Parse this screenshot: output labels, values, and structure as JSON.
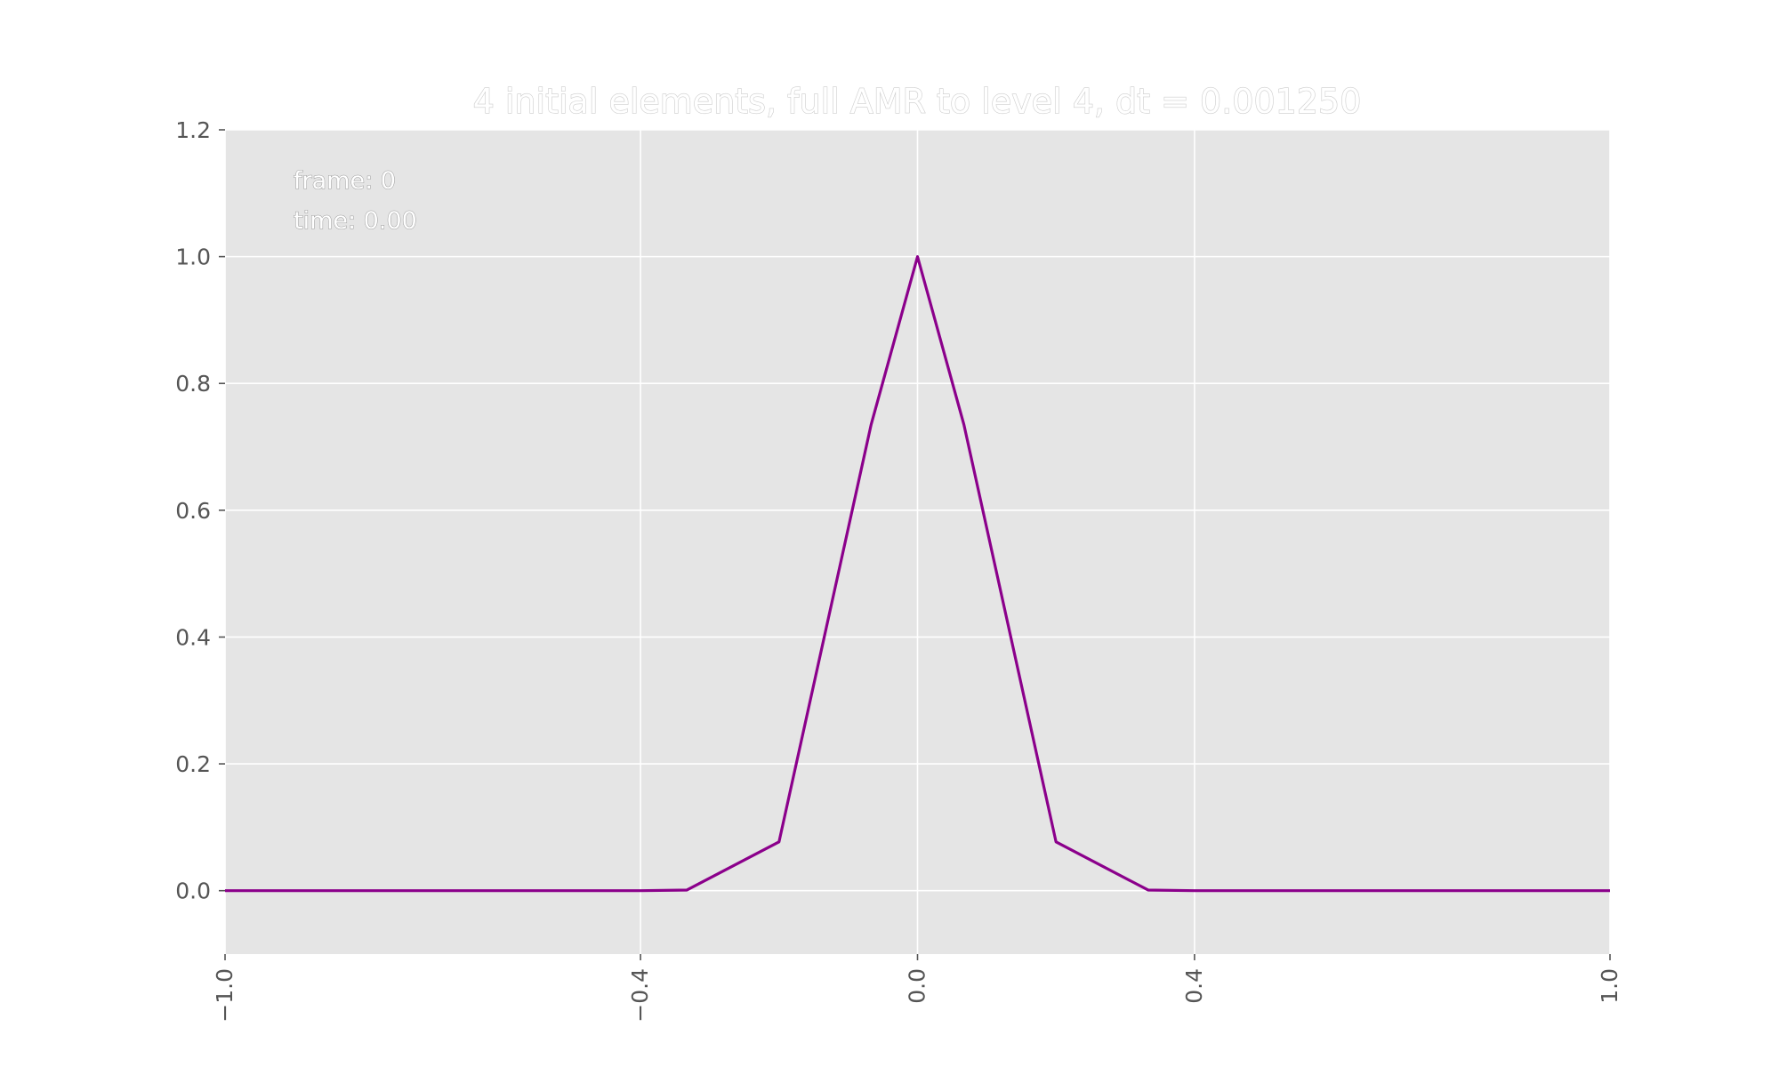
{
  "chart_data": {
    "type": "line",
    "title": "4 initial elements, full AMR to level 4, dt = 0.001250",
    "xlabel": "",
    "ylabel": "",
    "xlim": [
      -1.0,
      1.0
    ],
    "ylim": [
      -0.1,
      1.2
    ],
    "xticks": [
      -1.0,
      -0.4,
      0.0,
      0.4,
      1.0
    ],
    "xtick_labels": [
      "−1.0",
      "−0.4",
      "0.0",
      "0.4",
      "1.0"
    ],
    "yticks": [
      0.0,
      0.2,
      0.4,
      0.6,
      0.8,
      1.0,
      1.2
    ],
    "ytick_labels": [
      "0.0",
      "0.2",
      "0.4",
      "0.6",
      "0.8",
      "1.0",
      "1.2"
    ],
    "grid": true,
    "background_color": "#e5e5e5",
    "grid_color": "#ffffff",
    "annotations": [
      {
        "text": "frame: 0"
      },
      {
        "text": "time: 0.00"
      }
    ],
    "series": [
      {
        "color": "#8b008b",
        "x": [
          -1.0,
          -0.875,
          -0.75,
          -0.625,
          -0.5,
          -0.4,
          -0.333,
          -0.2,
          -0.067,
          0.0,
          0.067,
          0.2,
          0.333,
          0.4,
          0.5,
          0.625,
          0.75,
          0.875,
          1.0
        ],
        "y": [
          0.0,
          0.0,
          0.0,
          0.0,
          0.0,
          0.0,
          0.001,
          0.077,
          0.735,
          1.0,
          0.735,
          0.077,
          0.001,
          0.0,
          0.0,
          0.0,
          0.0,
          0.0,
          0.0
        ]
      }
    ]
  }
}
